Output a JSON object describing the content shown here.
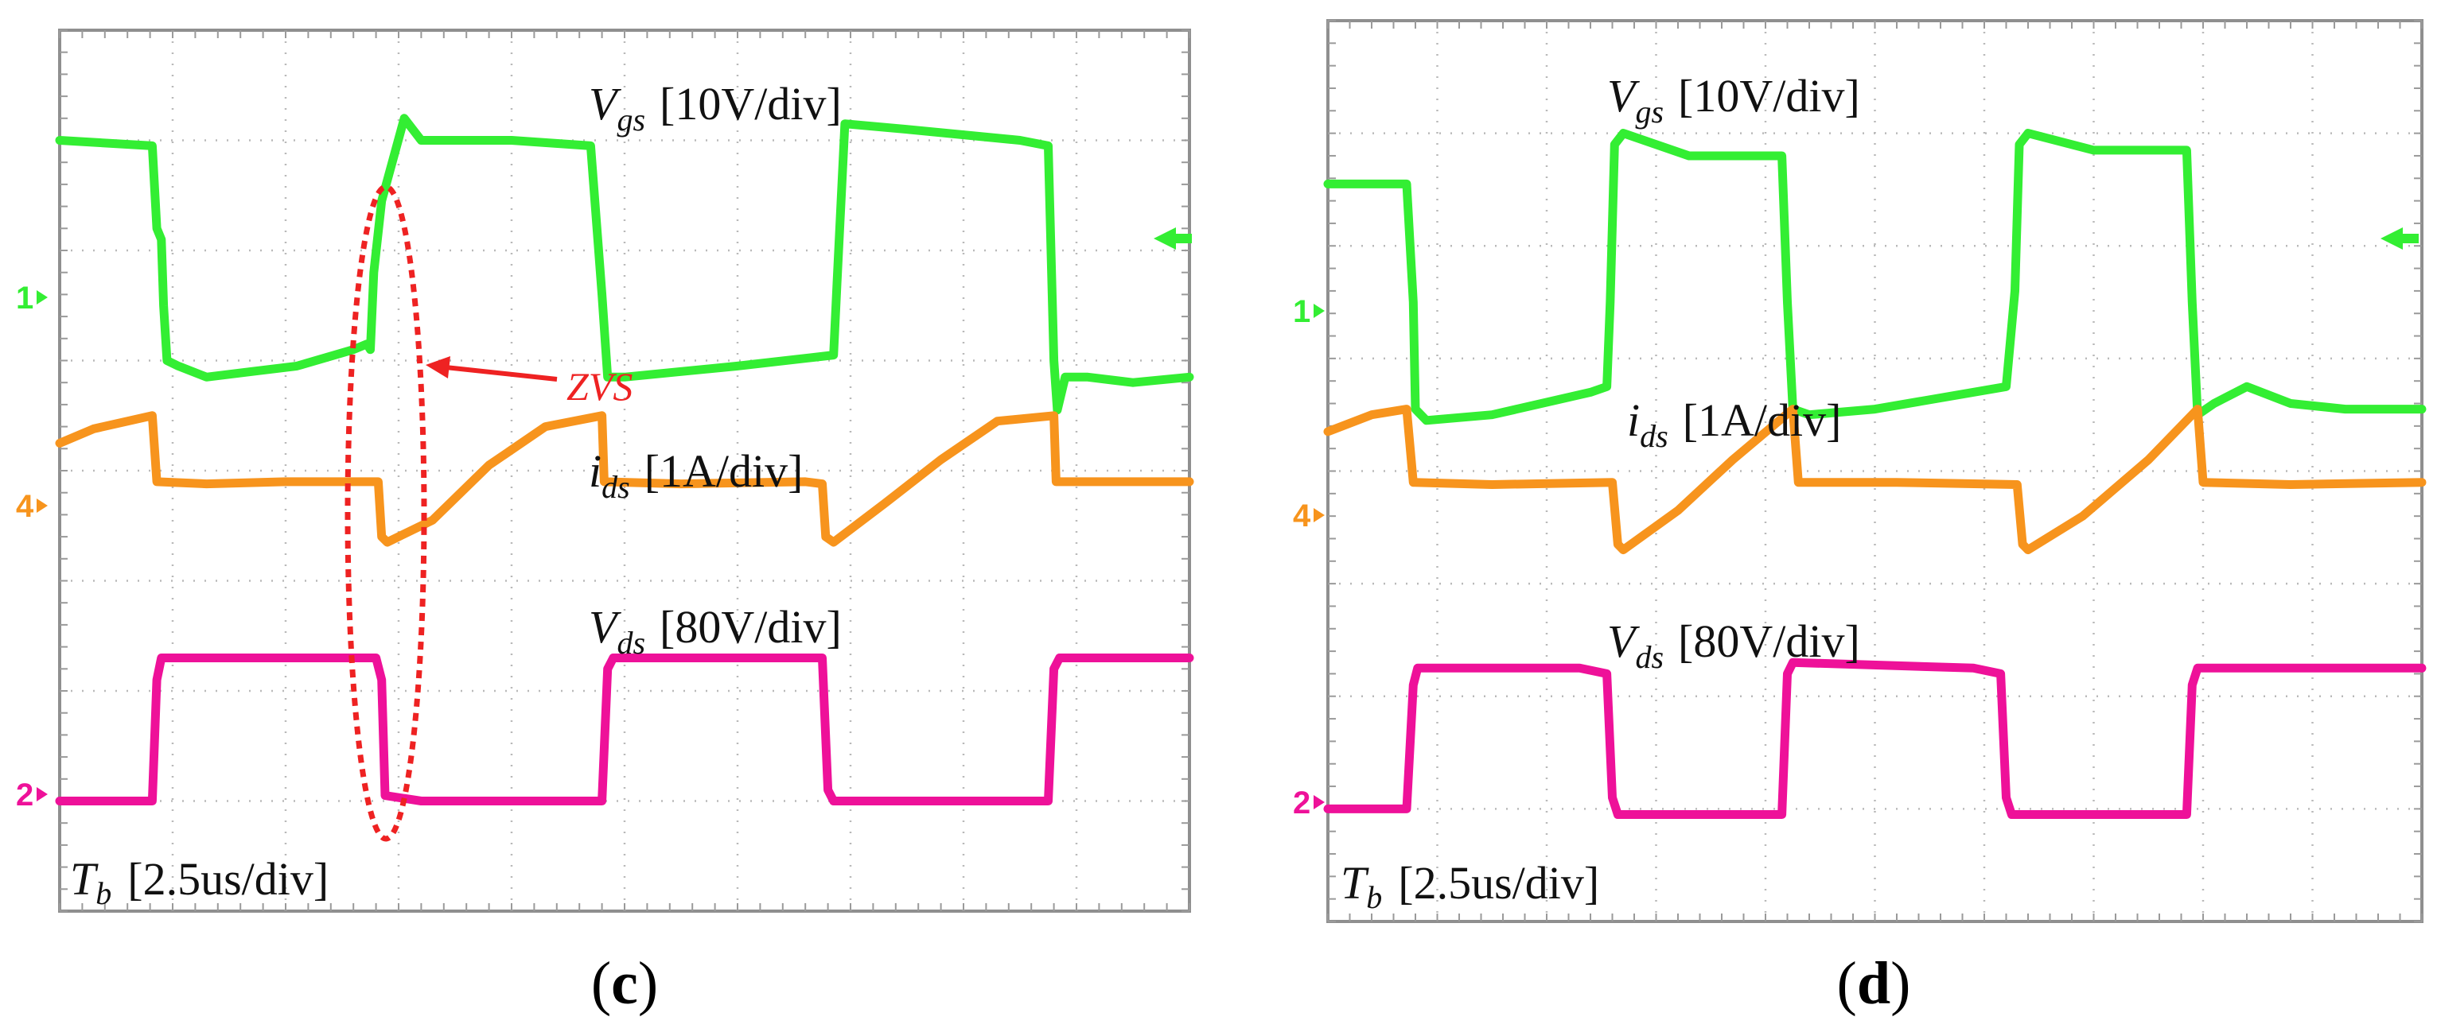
{
  "colors": {
    "vgs": "#33ee33",
    "ids": "#f7941d",
    "vds": "#ee1199",
    "annotation": "#ee2222",
    "ground_arrow": "#33ee33"
  },
  "chart_data": [
    {
      "type": "line",
      "id": "c",
      "caption": "(c)",
      "grid": {
        "divisions_x": 10,
        "divisions_y": 8
      },
      "x_range_div": [
        0,
        10
      ],
      "time_base": {
        "symbol": "T",
        "subscript": "b",
        "scale": "[2.5us/div]"
      },
      "series": [
        {
          "key": "vgs",
          "name": "Vgs",
          "symbol": "V",
          "subscript": "gs",
          "scale": "[10V/div]",
          "marker": "1",
          "level_div": 6.0,
          "points_div": [
            [
              0,
              7.0
            ],
            [
              0.82,
              6.95
            ],
            [
              0.86,
              6.2
            ],
            [
              0.9,
              6.1
            ],
            [
              0.92,
              5.5
            ],
            [
              0.95,
              5.0
            ],
            [
              1.05,
              4.95
            ],
            [
              1.3,
              4.85
            ],
            [
              1.7,
              4.9
            ],
            [
              2.1,
              4.95
            ],
            [
              2.6,
              5.1
            ],
            [
              2.72,
              5.15
            ],
            [
              2.75,
              5.1
            ],
            [
              2.78,
              5.8
            ],
            [
              2.85,
              6.45
            ],
            [
              3.05,
              7.2
            ],
            [
              3.2,
              7.0
            ],
            [
              4.0,
              7.0
            ],
            [
              4.7,
              6.95
            ],
            [
              4.8,
              5.6
            ],
            [
              4.85,
              4.85
            ],
            [
              5.0,
              4.85
            ],
            [
              5.5,
              4.9
            ],
            [
              6.0,
              4.95
            ],
            [
              6.85,
              5.05
            ],
            [
              6.88,
              5.7
            ],
            [
              6.95,
              7.15
            ],
            [
              7.5,
              7.1
            ],
            [
              8.5,
              7.0
            ],
            [
              8.75,
              6.95
            ],
            [
              8.8,
              5.0
            ],
            [
              8.83,
              4.55
            ],
            [
              8.9,
              4.85
            ],
            [
              9.1,
              4.85
            ],
            [
              9.5,
              4.8
            ],
            [
              10,
              4.85
            ]
          ]
        },
        {
          "key": "ids",
          "name": "ids",
          "symbol": "i",
          "subscript": "ds",
          "scale": "[1A/div]",
          "marker": "4",
          "level_div": 3.9,
          "points_div": [
            [
              0,
              4.25
            ],
            [
              0.3,
              4.38
            ],
            [
              0.82,
              4.5
            ],
            [
              0.86,
              3.9
            ],
            [
              1.3,
              3.88
            ],
            [
              2.0,
              3.9
            ],
            [
              2.82,
              3.9
            ],
            [
              2.85,
              3.4
            ],
            [
              2.9,
              3.35
            ],
            [
              3.3,
              3.55
            ],
            [
              3.8,
              4.05
            ],
            [
              4.3,
              4.4
            ],
            [
              4.8,
              4.5
            ],
            [
              4.82,
              3.9
            ],
            [
              5.5,
              3.88
            ],
            [
              6.6,
              3.9
            ],
            [
              6.75,
              3.88
            ],
            [
              6.78,
              3.4
            ],
            [
              6.85,
              3.35
            ],
            [
              7.3,
              3.7
            ],
            [
              7.8,
              4.1
            ],
            [
              8.3,
              4.45
            ],
            [
              8.8,
              4.5
            ],
            [
              8.82,
              3.9
            ],
            [
              9.5,
              3.9
            ],
            [
              10,
              3.9
            ]
          ]
        },
        {
          "key": "vds",
          "name": "Vds",
          "symbol": "V",
          "subscript": "ds",
          "scale": "[80V/div]",
          "marker": "2",
          "level_div": 1.0,
          "points_div": [
            [
              0,
              1.0
            ],
            [
              0.82,
              1.0
            ],
            [
              0.86,
              2.1
            ],
            [
              0.9,
              2.3
            ],
            [
              2.8,
              2.3
            ],
            [
              2.85,
              2.1
            ],
            [
              2.88,
              1.05
            ],
            [
              3.2,
              1.0
            ],
            [
              4.8,
              1.0
            ],
            [
              4.85,
              2.2
            ],
            [
              4.9,
              2.3
            ],
            [
              6.75,
              2.3
            ],
            [
              6.8,
              1.1
            ],
            [
              6.85,
              1.0
            ],
            [
              8.75,
              1.0
            ],
            [
              8.8,
              2.2
            ],
            [
              8.85,
              2.3
            ],
            [
              10,
              2.3
            ]
          ]
        }
      ],
      "annotation": {
        "text": "ZVS"
      }
    },
    {
      "type": "line",
      "id": "d",
      "caption": "(d)",
      "grid": {
        "divisions_x": 10,
        "divisions_y": 8
      },
      "x_range_div": [
        0,
        10
      ],
      "time_base": {
        "symbol": "T",
        "subscript": "b",
        "scale": "[2.5us/div]"
      },
      "series": [
        {
          "key": "vgs",
          "name": "Vgs",
          "symbol": "V",
          "subscript": "gs",
          "scale": "[10V/div]",
          "marker": "1",
          "level_div": 5.5,
          "points_div": [
            [
              0,
              6.55
            ],
            [
              0.72,
              6.55
            ],
            [
              0.78,
              5.5
            ],
            [
              0.8,
              4.55
            ],
            [
              0.9,
              4.45
            ],
            [
              1.5,
              4.5
            ],
            [
              2.4,
              4.7
            ],
            [
              2.55,
              4.75
            ],
            [
              2.58,
              5.5
            ],
            [
              2.62,
              6.9
            ],
            [
              2.7,
              7.0
            ],
            [
              3.3,
              6.8
            ],
            [
              4.15,
              6.8
            ],
            [
              4.2,
              5.5
            ],
            [
              4.25,
              4.55
            ],
            [
              4.4,
              4.5
            ],
            [
              5.0,
              4.55
            ],
            [
              6.2,
              4.75
            ],
            [
              6.28,
              5.6
            ],
            [
              6.32,
              6.9
            ],
            [
              6.4,
              7.0
            ],
            [
              7.0,
              6.85
            ],
            [
              7.85,
              6.85
            ],
            [
              7.9,
              5.5
            ],
            [
              7.95,
              4.5
            ],
            [
              8.1,
              4.6
            ],
            [
              8.4,
              4.75
            ],
            [
              8.8,
              4.6
            ],
            [
              9.3,
              4.55
            ],
            [
              10,
              4.55
            ]
          ]
        },
        {
          "key": "ids",
          "name": "ids",
          "symbol": "i",
          "subscript": "ds",
          "scale": "[1A/div]",
          "marker": "4",
          "level_div": 3.9,
          "points_div": [
            [
              0,
              4.35
            ],
            [
              0.4,
              4.5
            ],
            [
              0.72,
              4.55
            ],
            [
              0.78,
              3.9
            ],
            [
              1.5,
              3.88
            ],
            [
              2.6,
              3.9
            ],
            [
              2.65,
              3.35
            ],
            [
              2.7,
              3.3
            ],
            [
              3.2,
              3.65
            ],
            [
              3.7,
              4.1
            ],
            [
              4.25,
              4.55
            ],
            [
              4.3,
              3.9
            ],
            [
              5.2,
              3.9
            ],
            [
              6.3,
              3.88
            ],
            [
              6.35,
              3.35
            ],
            [
              6.4,
              3.3
            ],
            [
              6.9,
              3.6
            ],
            [
              7.5,
              4.1
            ],
            [
              7.95,
              4.55
            ],
            [
              8.0,
              3.9
            ],
            [
              8.8,
              3.88
            ],
            [
              10,
              3.9
            ]
          ]
        },
        {
          "key": "vds",
          "name": "Vds",
          "symbol": "V",
          "subscript": "ds",
          "scale": "[80V/div]",
          "marker": "2",
          "level_div": 1.0,
          "points_div": [
            [
              0,
              1.0
            ],
            [
              0.72,
              1.0
            ],
            [
              0.78,
              2.1
            ],
            [
              0.82,
              2.25
            ],
            [
              2.3,
              2.25
            ],
            [
              2.55,
              2.2
            ],
            [
              2.6,
              1.1
            ],
            [
              2.65,
              0.95
            ],
            [
              4.15,
              0.95
            ],
            [
              4.2,
              2.2
            ],
            [
              4.25,
              2.3
            ],
            [
              5.9,
              2.25
            ],
            [
              6.15,
              2.2
            ],
            [
              6.2,
              1.1
            ],
            [
              6.25,
              0.95
            ],
            [
              7.85,
              0.95
            ],
            [
              7.9,
              2.1
            ],
            [
              7.95,
              2.25
            ],
            [
              10,
              2.25
            ]
          ]
        }
      ]
    }
  ]
}
